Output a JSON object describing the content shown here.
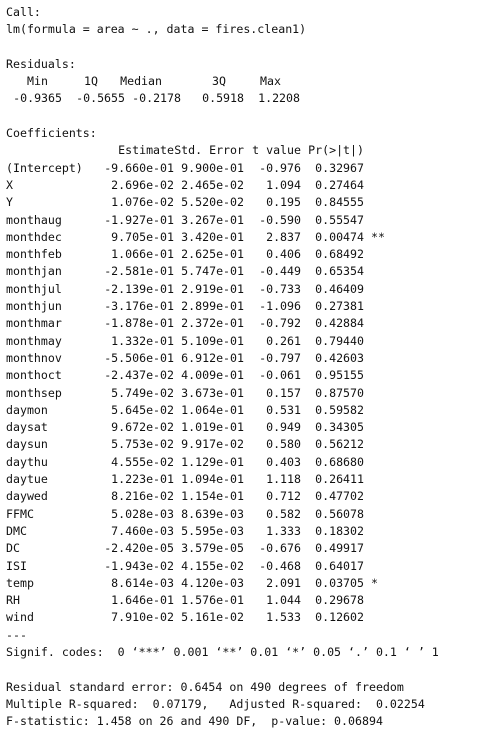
{
  "call": {
    "header": "Call:",
    "formula": "lm(formula = area ~ ., data = fires.clean1)"
  },
  "residuals": {
    "header": "Residuals:",
    "labels": [
      "Min",
      "1Q",
      "Median",
      "3Q",
      "Max"
    ],
    "values": [
      "-0.9365",
      "-0.5655",
      "-0.2178",
      "0.5918",
      "1.2208"
    ]
  },
  "coefficients": {
    "header": "Coefficients:",
    "columns": [
      "Estimate",
      "Std. Error",
      "t value",
      "Pr(>|t|)"
    ],
    "rows": [
      {
        "term": "(Intercept)",
        "estimate": "-9.660e-01",
        "se": "9.900e-01",
        "t": "-0.976",
        "p": "0.32967",
        "sig": ""
      },
      {
        "term": "X",
        "estimate": "2.696e-02",
        "se": "2.465e-02",
        "t": "1.094",
        "p": "0.27464",
        "sig": ""
      },
      {
        "term": "Y",
        "estimate": "1.076e-02",
        "se": "5.520e-02",
        "t": "0.195",
        "p": "0.84555",
        "sig": ""
      },
      {
        "term": "monthaug",
        "estimate": "-1.927e-01",
        "se": "3.267e-01",
        "t": "-0.590",
        "p": "0.55547",
        "sig": ""
      },
      {
        "term": "monthdec",
        "estimate": "9.705e-01",
        "se": "3.420e-01",
        "t": "2.837",
        "p": "0.00474",
        "sig": "**"
      },
      {
        "term": "monthfeb",
        "estimate": "1.066e-01",
        "se": "2.625e-01",
        "t": "0.406",
        "p": "0.68492",
        "sig": ""
      },
      {
        "term": "monthjan",
        "estimate": "-2.581e-01",
        "se": "5.747e-01",
        "t": "-0.449",
        "p": "0.65354",
        "sig": ""
      },
      {
        "term": "monthjul",
        "estimate": "-2.139e-01",
        "se": "2.919e-01",
        "t": "-0.733",
        "p": "0.46409",
        "sig": ""
      },
      {
        "term": "monthjun",
        "estimate": "-3.176e-01",
        "se": "2.899e-01",
        "t": "-1.096",
        "p": "0.27381",
        "sig": ""
      },
      {
        "term": "monthmar",
        "estimate": "-1.878e-01",
        "se": "2.372e-01",
        "t": "-0.792",
        "p": "0.42884",
        "sig": ""
      },
      {
        "term": "monthmay",
        "estimate": "1.332e-01",
        "se": "5.109e-01",
        "t": "0.261",
        "p": "0.79440",
        "sig": ""
      },
      {
        "term": "monthnov",
        "estimate": "-5.506e-01",
        "se": "6.912e-01",
        "t": "-0.797",
        "p": "0.42603",
        "sig": ""
      },
      {
        "term": "monthoct",
        "estimate": "-2.437e-02",
        "se": "4.009e-01",
        "t": "-0.061",
        "p": "0.95155",
        "sig": ""
      },
      {
        "term": "monthsep",
        "estimate": "5.749e-02",
        "se": "3.673e-01",
        "t": "0.157",
        "p": "0.87570",
        "sig": ""
      },
      {
        "term": "daymon",
        "estimate": "5.645e-02",
        "se": "1.064e-01",
        "t": "0.531",
        "p": "0.59582",
        "sig": ""
      },
      {
        "term": "daysat",
        "estimate": "9.672e-02",
        "se": "1.019e-01",
        "t": "0.949",
        "p": "0.34305",
        "sig": ""
      },
      {
        "term": "daysun",
        "estimate": "5.753e-02",
        "se": "9.917e-02",
        "t": "0.580",
        "p": "0.56212",
        "sig": ""
      },
      {
        "term": "daythu",
        "estimate": "4.555e-02",
        "se": "1.129e-01",
        "t": "0.403",
        "p": "0.68680",
        "sig": ""
      },
      {
        "term": "daytue",
        "estimate": "1.223e-01",
        "se": "1.094e-01",
        "t": "1.118",
        "p": "0.26411",
        "sig": ""
      },
      {
        "term": "daywed",
        "estimate": "8.216e-02",
        "se": "1.154e-01",
        "t": "0.712",
        "p": "0.47702",
        "sig": ""
      },
      {
        "term": "FFMC",
        "estimate": "5.028e-03",
        "se": "8.639e-03",
        "t": "0.582",
        "p": "0.56078",
        "sig": ""
      },
      {
        "term": "DMC",
        "estimate": "7.460e-03",
        "se": "5.595e-03",
        "t": "1.333",
        "p": "0.18302",
        "sig": ""
      },
      {
        "term": "DC",
        "estimate": "-2.420e-05",
        "se": "3.579e-05",
        "t": "-0.676",
        "p": "0.49917",
        "sig": ""
      },
      {
        "term": "ISI",
        "estimate": "-1.943e-02",
        "se": "4.155e-02",
        "t": "-0.468",
        "p": "0.64017",
        "sig": ""
      },
      {
        "term": "temp",
        "estimate": "8.614e-03",
        "se": "4.120e-03",
        "t": "2.091",
        "p": "0.03705",
        "sig": "*"
      },
      {
        "term": "RH",
        "estimate": "1.646e-01",
        "se": "1.576e-01",
        "t": "1.044",
        "p": "0.29678",
        "sig": ""
      },
      {
        "term": "wind",
        "estimate": "7.910e-02",
        "se": "5.161e-02",
        "t": "1.533",
        "p": "0.12602",
        "sig": ""
      }
    ]
  },
  "separator": "---",
  "signif_codes": "Signif. codes:  0 ‘***’ 0.001 ‘**’ 0.01 ‘*’ 0.05 ‘.’ 0.1 ‘ ’ 1",
  "summary": {
    "residual_se": "Residual standard error: 0.6454 on 490 degrees of freedom",
    "r_squared": "Multiple R-squared:  0.07179,\tAdjusted R-squared:  0.02254",
    "f_statistic": "F-statistic: 1.458 on 26 and 490 DF,  p-value: 0.06894"
  }
}
